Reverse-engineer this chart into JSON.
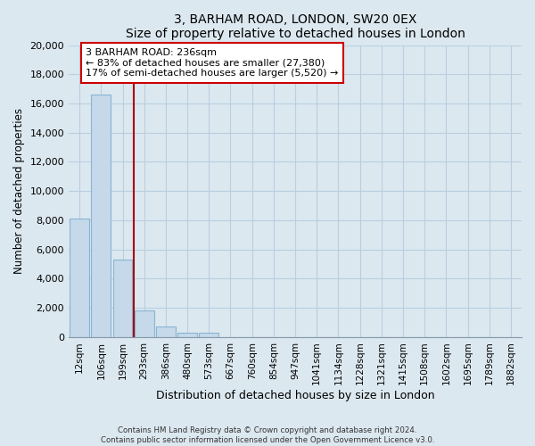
{
  "title": "3, BARHAM ROAD, LONDON, SW20 0EX",
  "subtitle": "Size of property relative to detached houses in London",
  "xlabel": "Distribution of detached houses by size in London",
  "ylabel": "Number of detached properties",
  "bar_labels": [
    "12sqm",
    "106sqm",
    "199sqm",
    "293sqm",
    "386sqm",
    "480sqm",
    "573sqm",
    "667sqm",
    "760sqm",
    "854sqm",
    "947sqm",
    "1041sqm",
    "1134sqm",
    "1228sqm",
    "1321sqm",
    "1415sqm",
    "1508sqm",
    "1602sqm",
    "1695sqm",
    "1789sqm",
    "1882sqm"
  ],
  "bar_values": [
    8100,
    16600,
    5300,
    1800,
    750,
    300,
    280,
    0,
    0,
    0,
    0,
    0,
    0,
    0,
    0,
    0,
    0,
    0,
    0,
    0,
    0
  ],
  "bar_color": "#c5d9ea",
  "bar_edge_color": "#8ab4d4",
  "vline_color": "#aa0000",
  "ylim": [
    0,
    20000
  ],
  "yticks": [
    0,
    2000,
    4000,
    6000,
    8000,
    10000,
    12000,
    14000,
    16000,
    18000,
    20000
  ],
  "annotation_title": "3 BARHAM ROAD: 236sqm",
  "annotation_line1": "← 83% of detached houses are smaller (27,380)",
  "annotation_line2": "17% of semi-detached houses are larger (5,520) →",
  "annotation_box_color": "#ffffff",
  "annotation_box_edge": "#cc0000",
  "footer_line1": "Contains HM Land Registry data © Crown copyright and database right 2024.",
  "footer_line2": "Contains public sector information licensed under the Open Government Licence v3.0.",
  "background_color": "#dce8f0",
  "grid_color": "#b8cfe0"
}
